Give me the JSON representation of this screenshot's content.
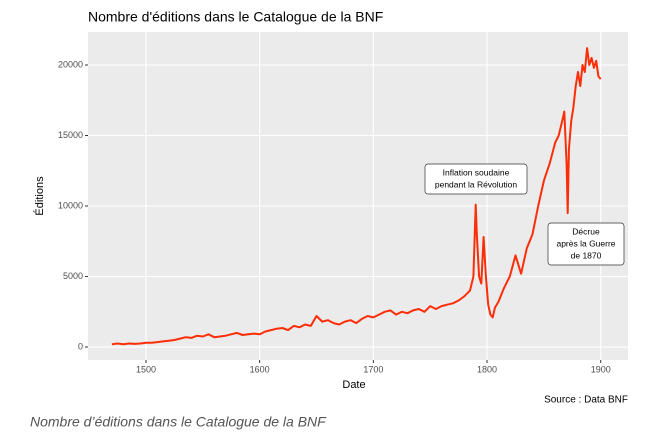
{
  "chart_data": {
    "type": "line",
    "title": "Nombre d'éditions dans le Catalogue de la BNF",
    "x_label": "Date",
    "y_label": "Éditions",
    "source": "Source : Data BNF",
    "caption": "Nombre d’éditions dans le Catalogue de la BNF",
    "annotations": [
      [
        "Inflation soudaine",
        "pendant la Révolution"
      ],
      [
        "Décrue",
        "après la Guerre",
        "de 1870"
      ]
    ],
    "color": "#fc2e08",
    "grid": true,
    "xlim": [
      1449,
      1924
    ],
    "ylim": [
      -920,
      22340
    ],
    "xticks": [
      1500,
      1600,
      1700,
      1800,
      1900
    ],
    "yticks": [
      0,
      5000,
      10000,
      15000,
      20000
    ],
    "x": [
      1470,
      1475,
      1480,
      1485,
      1490,
      1495,
      1500,
      1505,
      1510,
      1515,
      1520,
      1525,
      1530,
      1535,
      1540,
      1545,
      1550,
      1555,
      1560,
      1565,
      1570,
      1575,
      1580,
      1585,
      1590,
      1595,
      1600,
      1605,
      1610,
      1615,
      1620,
      1625,
      1630,
      1635,
      1640,
      1645,
      1650,
      1655,
      1660,
      1665,
      1670,
      1675,
      1680,
      1685,
      1690,
      1695,
      1700,
      1705,
      1710,
      1715,
      1720,
      1725,
      1730,
      1735,
      1740,
      1745,
      1750,
      1755,
      1760,
      1765,
      1770,
      1775,
      1780,
      1785,
      1788,
      1790,
      1791,
      1793,
      1795,
      1797,
      1799,
      1801,
      1803,
      1805,
      1807,
      1810,
      1815,
      1820,
      1825,
      1830,
      1835,
      1840,
      1845,
      1850,
      1855,
      1860,
      1863,
      1866,
      1868,
      1870,
      1871,
      1872,
      1874,
      1876,
      1878,
      1880,
      1882,
      1884,
      1886,
      1888,
      1890,
      1892,
      1894,
      1896,
      1898,
      1900
    ],
    "values": [
      200,
      250,
      200,
      250,
      220,
      250,
      300,
      300,
      350,
      400,
      450,
      500,
      600,
      700,
      650,
      800,
      750,
      900,
      700,
      750,
      800,
      900,
      1000,
      850,
      900,
      950,
      900,
      1100,
      1200,
      1300,
      1350,
      1200,
      1500,
      1400,
      1600,
      1500,
      2200,
      1800,
      1900,
      1700,
      1600,
      1800,
      1900,
      1700,
      2000,
      2200,
      2100,
      2300,
      2500,
      2600,
      2300,
      2500,
      2400,
      2600,
      2700,
      2500,
      2900,
      2700,
      2900,
      3000,
      3100,
      3300,
      3600,
      4000,
      5000,
      10100,
      8000,
      5000,
      4500,
      7800,
      5000,
      3000,
      2300,
      2100,
      2800,
      3200,
      4200,
      5000,
      6500,
      5200,
      7000,
      8000,
      10000,
      11800,
      13000,
      14500,
      15000,
      16000,
      16700,
      13000,
      9500,
      14000,
      16000,
      17000,
      18500,
      19500,
      18500,
      20000,
      19500,
      21200,
      20000,
      20500,
      19800,
      20300,
      19200,
      19000
    ]
  }
}
